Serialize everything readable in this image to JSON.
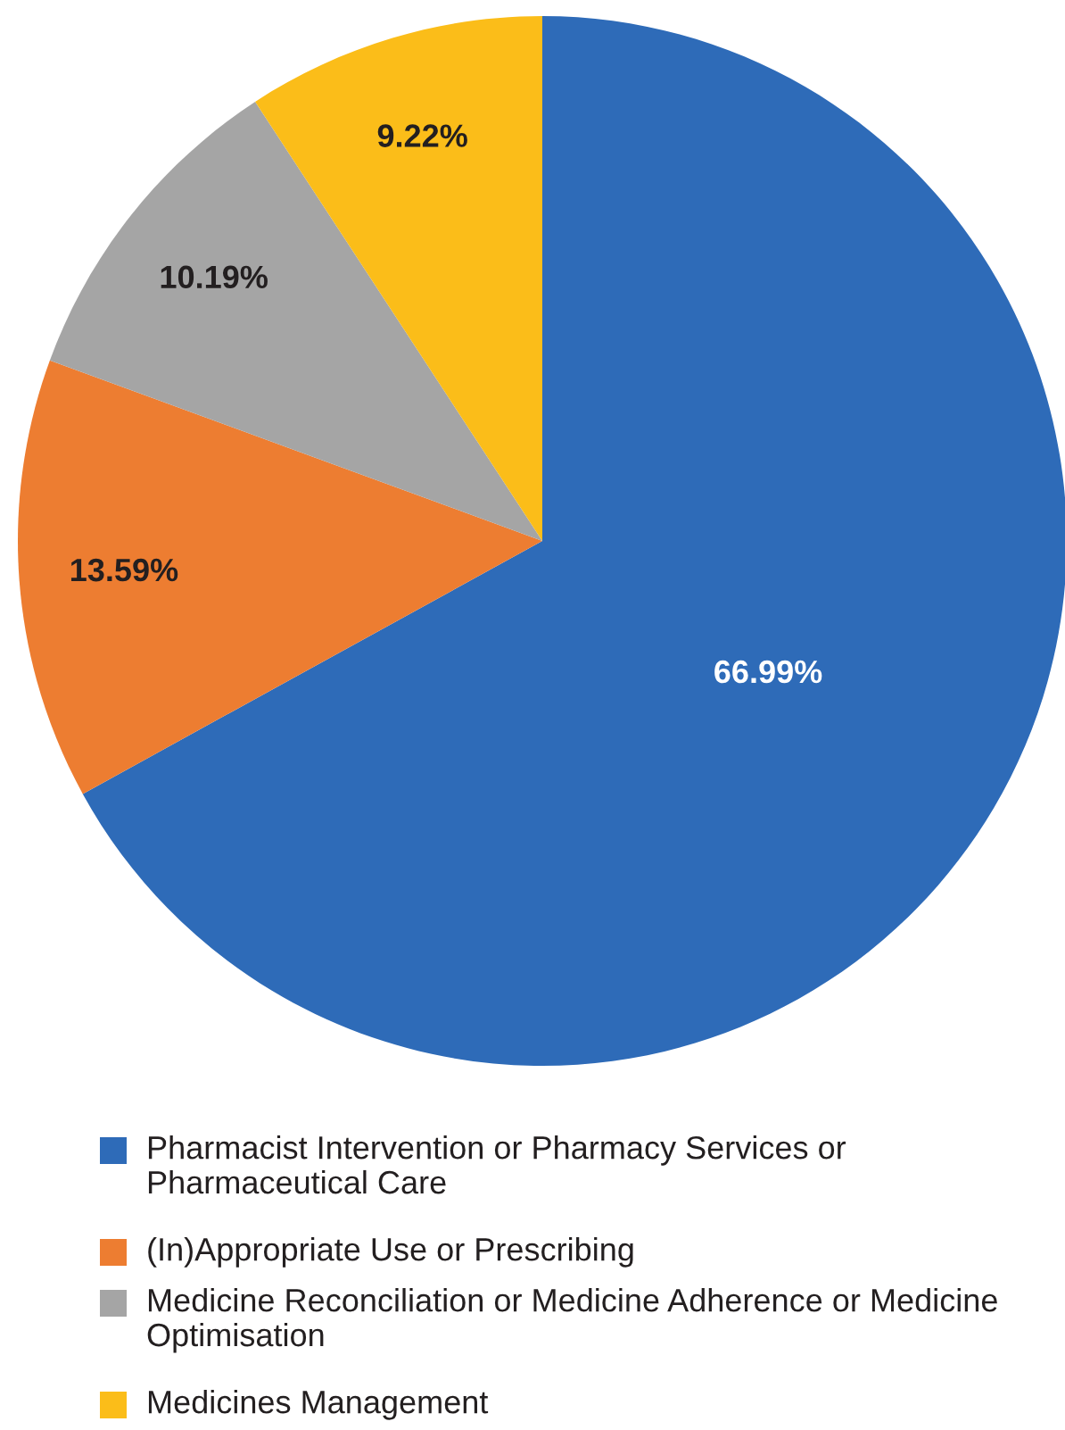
{
  "chart_data": {
    "type": "pie",
    "categories": [
      "Pharmacist Intervention or Pharmacy Services or Pharmaceutical Care",
      "(In)Appropriate Use or Prescribing",
      "Medicine Reconciliation or Medicine Adherence or Medicine Optimisation",
      "Medicines Management"
    ],
    "values": [
      66.99,
      13.59,
      10.19,
      9.22
    ],
    "colors": [
      "#2e6bb8",
      "#ed7d31",
      "#a5a5a5",
      "#fbbd19"
    ],
    "value_labels": [
      "66.99%",
      "13.59%",
      "10.19%",
      "9.22%"
    ],
    "legend": "bottom"
  }
}
